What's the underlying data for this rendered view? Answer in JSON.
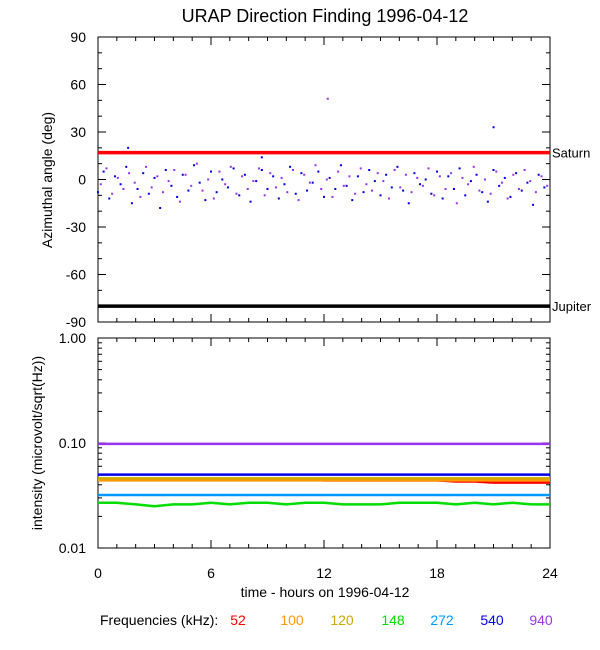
{
  "title": "URAP Direction Finding  1996-04-12",
  "colors": {
    "background": "#ffffff",
    "axes": "#000000",
    "saturn_line": "#ff0000",
    "jupiter_line": "#000000"
  },
  "chart_data": [
    {
      "panel": "top",
      "type": "scatter",
      "ylabel": "Azimuthal angle (deg)",
      "ylim": [
        -90,
        90
      ],
      "yticks": [
        90,
        60,
        30,
        0,
        -30,
        -60,
        -90
      ],
      "xlim": [
        0,
        24
      ],
      "x_unit": "hours",
      "grid": false,
      "reference_lines": [
        {
          "label": "Saturn",
          "y": 17,
          "color": "#ff0000"
        },
        {
          "label": "Jupiter",
          "y": -80,
          "color": "#000000"
        }
      ],
      "series": [
        {
          "color": "#0000dd",
          "x": [
            0.0,
            0.3,
            0.6,
            0.9,
            1.2,
            1.5,
            1.8,
            2.1,
            2.4,
            2.7,
            3.0,
            3.3,
            3.6,
            3.9,
            4.2,
            4.5,
            4.8,
            5.1,
            5.4,
            5.7,
            6.0,
            6.3,
            6.6,
            6.9,
            7.2,
            7.5,
            7.8,
            8.1,
            8.4,
            8.7,
            9.0,
            9.3,
            9.6,
            9.9,
            10.2,
            10.5,
            10.8,
            11.1,
            11.4,
            11.7,
            12.0,
            12.3,
            12.6,
            12.9,
            13.2,
            13.5,
            13.8,
            14.1,
            14.4,
            14.7,
            15.0,
            15.3,
            15.6,
            15.9,
            16.2,
            16.5,
            16.8,
            17.1,
            17.4,
            17.7,
            18.0,
            18.3,
            18.6,
            18.9,
            19.2,
            19.5,
            19.8,
            20.1,
            20.4,
            20.7,
            21.0,
            21.3,
            21.6,
            21.9,
            22.2,
            22.5,
            22.8,
            23.1,
            23.4,
            23.7,
            1.6,
            8.7,
            21.0
          ],
          "y": [
            -8,
            5,
            -12,
            2,
            -3,
            8,
            -15,
            -6,
            4,
            -9,
            1,
            -18,
            6,
            -4,
            -11,
            3,
            -7,
            9,
            -2,
            -13,
            5,
            -8,
            0,
            -5,
            7,
            -10,
            3,
            -14,
            -1,
            6,
            -6,
            2,
            -12,
            -3,
            8,
            -9,
            4,
            -7,
            -2,
            5,
            -11,
            1,
            -6,
            9,
            -4,
            -13,
            2,
            -8,
            6,
            -1,
            -10,
            3,
            -5,
            8,
            -7,
            -15,
            4,
            -3,
            0,
            -9,
            5,
            -12,
            2,
            -6,
            7,
            -10,
            -1,
            3,
            -8,
            -14,
            6,
            -4,
            1,
            -11,
            4,
            -7,
            -2,
            -16,
            3,
            -5,
            20,
            14,
            33
          ]
        },
        {
          "color": "#9933ee",
          "x": [
            0.15,
            0.45,
            0.75,
            1.05,
            1.35,
            1.65,
            1.95,
            2.25,
            2.55,
            2.85,
            3.15,
            3.45,
            3.75,
            4.05,
            4.35,
            4.65,
            4.95,
            5.25,
            5.55,
            5.85,
            6.15,
            6.45,
            6.75,
            7.05,
            7.35,
            7.65,
            7.95,
            8.25,
            8.55,
            8.85,
            9.15,
            9.45,
            9.75,
            10.05,
            10.35,
            10.65,
            10.95,
            11.25,
            11.55,
            11.85,
            12.15,
            12.45,
            12.75,
            13.05,
            13.35,
            13.65,
            13.95,
            14.25,
            14.55,
            14.85,
            15.15,
            15.45,
            15.75,
            16.05,
            16.35,
            16.65,
            16.95,
            17.25,
            17.55,
            17.85,
            18.15,
            18.45,
            18.75,
            19.05,
            19.35,
            19.65,
            19.95,
            20.25,
            20.55,
            20.85,
            21.15,
            21.45,
            21.75,
            22.05,
            22.35,
            22.65,
            22.95,
            23.25,
            23.55,
            23.85,
            12.2
          ],
          "y": [
            -3,
            7,
            -9,
            1,
            -6,
            4,
            -2,
            -11,
            8,
            -5,
            2,
            -8,
            -1,
            6,
            -14,
            3,
            -4,
            10,
            -7,
            0,
            -12,
            5,
            -3,
            8,
            -9,
            2,
            -6,
            -1,
            7,
            -10,
            4,
            -5,
            1,
            -8,
            6,
            -13,
            3,
            -2,
            9,
            -6,
            0,
            -11,
            5,
            -4,
            2,
            -9,
            7,
            -3,
            -7,
            4,
            -1,
            -12,
            6,
            -5,
            3,
            -8,
            1,
            -4,
            7,
            -10,
            2,
            -6,
            4,
            -15,
            1,
            -3,
            8,
            -7,
            0,
            -9,
            5,
            -2,
            -12,
            3,
            -6,
            6,
            -1,
            -8,
            2,
            -4,
            51
          ]
        }
      ]
    },
    {
      "panel": "bottom",
      "type": "line",
      "ylabel": "intensity (microvolt/sqrt(Hz))",
      "yscale": "log",
      "ylim": [
        0.01,
        1.0
      ],
      "yticks": [
        1.0,
        0.1,
        0.01
      ],
      "ytick_labels": [
        "1.00",
        "0.10",
        "0.01"
      ],
      "xlabel": "time - hours on 1996-04-12",
      "xlim": [
        0,
        24
      ],
      "xticks": [
        0,
        6,
        12,
        18,
        24
      ],
      "grid": false,
      "x": [
        0,
        1,
        2,
        3,
        4,
        5,
        6,
        7,
        8,
        9,
        10,
        11,
        12,
        13,
        14,
        15,
        16,
        17,
        18,
        19,
        20,
        21,
        22,
        23,
        24
      ],
      "series": [
        {
          "name": "52",
          "color": "#ff0000",
          "values": [
            0.045,
            0.045,
            0.045,
            0.045,
            0.045,
            0.045,
            0.045,
            0.045,
            0.045,
            0.045,
            0.045,
            0.045,
            0.044,
            0.044,
            0.044,
            0.044,
            0.044,
            0.044,
            0.044,
            0.043,
            0.043,
            0.042,
            0.042,
            0.042,
            0.042
          ]
        },
        {
          "name": "100",
          "color": "#ff9900",
          "values": [
            0.044,
            0.044,
            0.044,
            0.044,
            0.044,
            0.044,
            0.044,
            0.044,
            0.044,
            0.044,
            0.044,
            0.044,
            0.044,
            0.044,
            0.044,
            0.044,
            0.044,
            0.044,
            0.044,
            0.044,
            0.044,
            0.044,
            0.044,
            0.044,
            0.044
          ]
        },
        {
          "name": "120",
          "color": "#ccaa00",
          "values": [
            0.046,
            0.046,
            0.046,
            0.046,
            0.046,
            0.046,
            0.046,
            0.046,
            0.046,
            0.046,
            0.046,
            0.046,
            0.046,
            0.046,
            0.046,
            0.046,
            0.046,
            0.046,
            0.046,
            0.046,
            0.046,
            0.046,
            0.046,
            0.046,
            0.046
          ]
        },
        {
          "name": "148",
          "color": "#00dd00",
          "values": [
            0.027,
            0.027,
            0.026,
            0.025,
            0.026,
            0.026,
            0.027,
            0.026,
            0.027,
            0.027,
            0.026,
            0.027,
            0.027,
            0.026,
            0.026,
            0.026,
            0.027,
            0.027,
            0.027,
            0.026,
            0.027,
            0.026,
            0.027,
            0.026,
            0.026
          ]
        },
        {
          "name": "272",
          "color": "#0099ff",
          "values": [
            0.032,
            0.032,
            0.032,
            0.032,
            0.032,
            0.032,
            0.032,
            0.032,
            0.032,
            0.032,
            0.032,
            0.032,
            0.032,
            0.032,
            0.032,
            0.032,
            0.032,
            0.032,
            0.032,
            0.032,
            0.032,
            0.032,
            0.032,
            0.032,
            0.032
          ]
        },
        {
          "name": "540",
          "color": "#0000ee",
          "values": [
            0.05,
            0.05,
            0.05,
            0.05,
            0.05,
            0.05,
            0.05,
            0.05,
            0.05,
            0.05,
            0.05,
            0.05,
            0.05,
            0.05,
            0.05,
            0.05,
            0.05,
            0.05,
            0.05,
            0.05,
            0.05,
            0.05,
            0.05,
            0.05,
            0.05
          ]
        },
        {
          "name": "940",
          "color": "#9933ee",
          "values": [
            0.098,
            0.098,
            0.098,
            0.098,
            0.098,
            0.098,
            0.098,
            0.098,
            0.098,
            0.098,
            0.098,
            0.098,
            0.098,
            0.098,
            0.098,
            0.098,
            0.098,
            0.098,
            0.098,
            0.098,
            0.098,
            0.098,
            0.098,
            0.098,
            0.098
          ]
        }
      ]
    }
  ],
  "legend": {
    "label": "Frequencies (kHz):",
    "placement": "bottom"
  }
}
